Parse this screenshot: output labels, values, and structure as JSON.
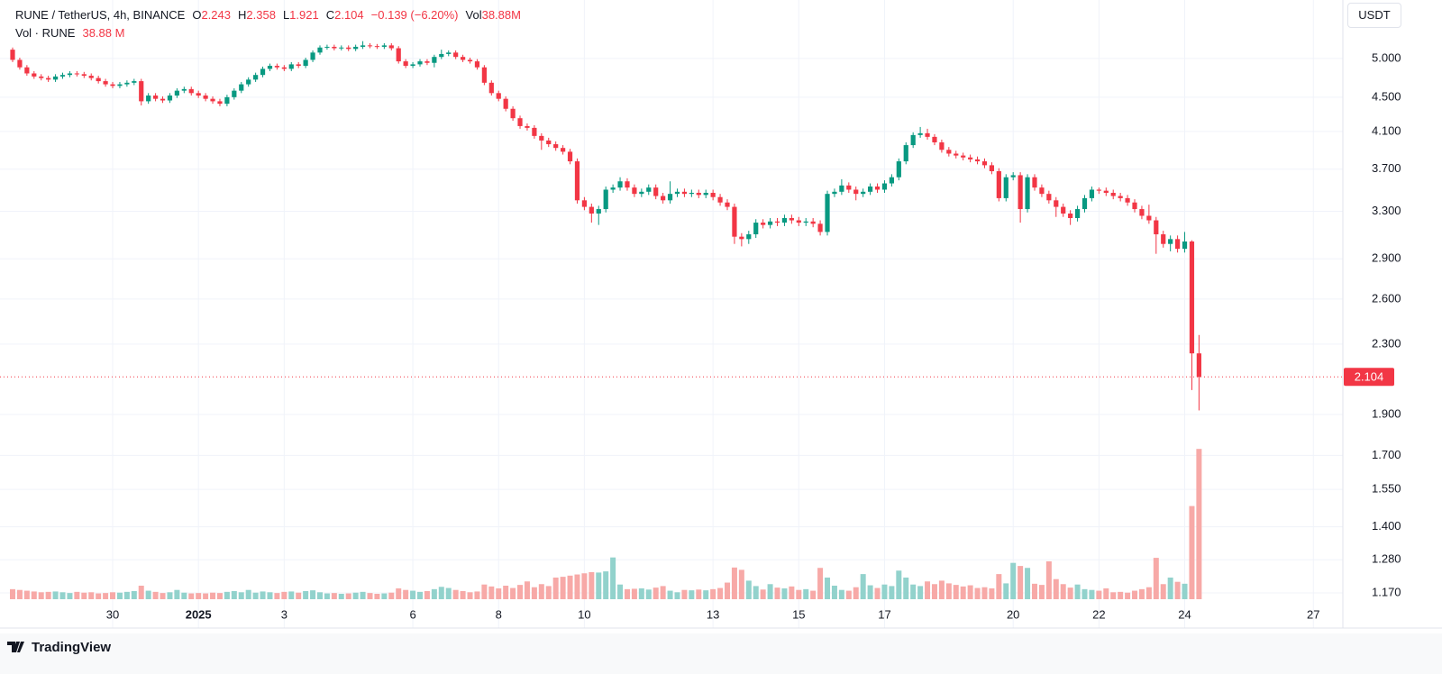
{
  "chart_data": {
    "type": "candlestick",
    "legend": {
      "symbol": "RUNE / TetherUS, 4h, BINANCE",
      "o": "O",
      "h": "H",
      "l": "L",
      "c": "C",
      "change": "−0.139 (−6.20%)",
      "vol": "Vol",
      "vol_value": "38.88M"
    },
    "volume_legend": {
      "name": "Vol · RUNE",
      "value": "38.88 M"
    },
    "currency": "USDT",
    "categories": [
      null,
      null,
      null,
      null,
      null,
      null,
      null,
      null,
      null,
      null,
      null,
      null,
      null,
      null,
      "30",
      null,
      null,
      null,
      null,
      null,
      null,
      null,
      null,
      null,
      null,
      null,
      "2025",
      null,
      null,
      null,
      null,
      null,
      null,
      null,
      null,
      null,
      null,
      null,
      "3",
      null,
      null,
      null,
      null,
      null,
      null,
      null,
      null,
      null,
      null,
      null,
      null,
      null,
      null,
      null,
      null,
      null,
      "6",
      null,
      null,
      null,
      null,
      null,
      null,
      null,
      null,
      null,
      null,
      null,
      "8",
      null,
      null,
      null,
      null,
      null,
      null,
      null,
      null,
      null,
      null,
      null,
      "10",
      null,
      null,
      null,
      null,
      null,
      null,
      null,
      null,
      null,
      null,
      null,
      null,
      null,
      null,
      null,
      null,
      null,
      "13",
      null,
      null,
      null,
      null,
      null,
      null,
      null,
      null,
      null,
      null,
      null,
      "15",
      null,
      null,
      null,
      null,
      null,
      null,
      null,
      null,
      null,
      null,
      null,
      "17",
      null,
      null,
      null,
      null,
      null,
      null,
      null,
      null,
      null,
      null,
      null,
      null,
      null,
      null,
      null,
      null,
      null,
      "20",
      null,
      null,
      null,
      null,
      null,
      null,
      null,
      null,
      null,
      null,
      null,
      "22",
      null,
      null,
      null,
      null,
      null,
      null,
      null,
      null,
      null,
      null,
      null,
      "24",
      null,
      null,
      null,
      null,
      null,
      null,
      null,
      null,
      null,
      null,
      null,
      null,
      null,
      null,
      null,
      null,
      null,
      "27",
      null,
      null,
      null
    ],
    "open": [
      5.12,
      4.98,
      4.88,
      4.8,
      4.76,
      4.74,
      4.72,
      4.76,
      4.78,
      4.8,
      4.79,
      4.77,
      4.74,
      4.7,
      4.66,
      4.64,
      4.66,
      4.68,
      4.7,
      4.45,
      4.52,
      4.48,
      4.46,
      4.52,
      4.58,
      4.6,
      4.55,
      4.52,
      4.48,
      4.45,
      4.42,
      4.5,
      4.58,
      4.66,
      4.72,
      4.78,
      4.86,
      4.9,
      4.88,
      4.86,
      4.92,
      4.9,
      4.98,
      5.08,
      5.15,
      5.16,
      5.14,
      5.15,
      5.13,
      5.16,
      5.18,
      5.17,
      5.16,
      5.18,
      5.14,
      4.96,
      4.9,
      4.92,
      4.96,
      4.94,
      5.02,
      5.06,
      5.08,
      5.02,
      4.98,
      4.96,
      4.88,
      4.68,
      4.55,
      4.48,
      4.36,
      4.25,
      4.16,
      4.14,
      4.05,
      4.0,
      3.96,
      3.92,
      3.88,
      3.78,
      3.4,
      3.34,
      3.28,
      3.32,
      3.5,
      3.52,
      3.58,
      3.52,
      3.46,
      3.48,
      3.52,
      3.44,
      3.4,
      3.46,
      3.48,
      3.46,
      3.47,
      3.45,
      3.47,
      3.43,
      3.38,
      3.34,
      3.08,
      3.06,
      3.1,
      3.2,
      3.18,
      3.21,
      3.2,
      3.24,
      3.22,
      3.2,
      3.21,
      3.19,
      3.12,
      3.46,
      3.48,
      3.54,
      3.5,
      3.46,
      3.48,
      3.53,
      3.5,
      3.56,
      3.62,
      3.78,
      3.95,
      4.06,
      4.08,
      4.04,
      3.98,
      3.9,
      3.86,
      3.84,
      3.82,
      3.8,
      3.78,
      3.74,
      3.68,
      3.42,
      3.62,
      3.64,
      3.32,
      3.62,
      3.52,
      3.46,
      3.4,
      3.34,
      3.28,
      3.24,
      3.32,
      3.42,
      3.5,
      3.49,
      3.47,
      3.44,
      3.42,
      3.38,
      3.32,
      3.26,
      3.22,
      3.1,
      3.02,
      3.06,
      2.98,
      3.04,
      2.243,
      null,
      null,
      null,
      null,
      null,
      null,
      null,
      null,
      null,
      null,
      null,
      null,
      null,
      null,
      null,
      null,
      null,
      null,
      null
    ],
    "high": [
      5.15,
      5.01,
      4.91,
      4.83,
      4.79,
      4.77,
      4.79,
      4.81,
      4.83,
      4.83,
      4.82,
      4.8,
      4.77,
      4.73,
      4.69,
      4.69,
      4.71,
      4.73,
      4.73,
      4.55,
      4.55,
      4.51,
      4.55,
      4.61,
      4.63,
      4.63,
      4.58,
      4.55,
      4.51,
      4.48,
      4.53,
      4.61,
      4.69,
      4.75,
      4.81,
      4.89,
      4.93,
      4.93,
      4.91,
      4.95,
      4.95,
      5.01,
      5.11,
      5.18,
      5.19,
      5.19,
      5.18,
      5.18,
      5.19,
      5.24,
      5.21,
      5.2,
      5.21,
      5.21,
      5.17,
      4.99,
      4.95,
      4.99,
      4.99,
      5.05,
      5.12,
      5.11,
      5.11,
      5.05,
      5.01,
      4.99,
      4.91,
      4.71,
      4.58,
      4.51,
      4.39,
      4.28,
      4.19,
      4.17,
      4.08,
      4.03,
      3.99,
      3.95,
      3.91,
      3.81,
      3.43,
      3.37,
      3.35,
      3.53,
      3.55,
      3.62,
      3.61,
      3.55,
      3.51,
      3.55,
      3.55,
      3.47,
      3.58,
      3.51,
      3.51,
      3.5,
      3.5,
      3.5,
      3.5,
      3.46,
      3.41,
      3.37,
      3.11,
      3.13,
      3.23,
      3.23,
      3.24,
      3.24,
      3.27,
      3.27,
      3.25,
      3.24,
      3.24,
      3.22,
      3.49,
      3.51,
      3.6,
      3.57,
      3.53,
      3.51,
      3.56,
      3.56,
      3.59,
      3.65,
      3.81,
      3.98,
      4.09,
      4.15,
      4.13,
      4.07,
      4.01,
      3.93,
      3.89,
      3.87,
      3.85,
      3.83,
      3.81,
      3.77,
      3.71,
      3.65,
      3.67,
      3.67,
      3.65,
      3.65,
      3.55,
      3.49,
      3.43,
      3.37,
      3.31,
      3.35,
      3.45,
      3.53,
      3.52,
      3.52,
      3.5,
      3.47,
      3.45,
      3.41,
      3.35,
      3.36,
      3.25,
      3.13,
      3.09,
      3.09,
      3.12,
      3.05,
      2.358,
      null,
      null,
      null,
      null,
      null,
      null,
      null,
      null,
      null,
      null,
      null,
      null,
      null,
      null,
      null,
      null,
      null,
      null,
      null
    ],
    "low": [
      4.95,
      4.85,
      4.77,
      4.73,
      4.71,
      4.69,
      4.69,
      4.73,
      4.75,
      4.76,
      4.74,
      4.71,
      4.67,
      4.63,
      4.61,
      4.61,
      4.63,
      4.65,
      4.4,
      4.42,
      4.45,
      4.43,
      4.43,
      4.49,
      4.55,
      4.52,
      4.49,
      4.45,
      4.42,
      4.39,
      4.39,
      4.47,
      4.55,
      4.63,
      4.69,
      4.75,
      4.83,
      4.85,
      4.83,
      4.83,
      4.87,
      4.87,
      4.95,
      5.05,
      5.12,
      5.11,
      5.11,
      5.1,
      5.1,
      5.13,
      5.14,
      5.13,
      5.13,
      5.11,
      4.93,
      4.87,
      4.87,
      4.89,
      4.91,
      4.88,
      4.99,
      5.03,
      4.99,
      4.95,
      4.93,
      4.85,
      4.65,
      4.52,
      4.45,
      4.33,
      4.22,
      4.13,
      4.11,
      4.02,
      3.9,
      3.93,
      3.89,
      3.85,
      3.75,
      3.37,
      3.31,
      3.2,
      3.18,
      3.29,
      3.47,
      3.49,
      3.49,
      3.43,
      3.43,
      3.45,
      3.41,
      3.37,
      3.37,
      3.43,
      3.43,
      3.43,
      3.42,
      3.42,
      3.4,
      3.35,
      3.31,
      3.02,
      3.0,
      3.02,
      3.07,
      3.15,
      3.15,
      3.17,
      3.17,
      3.19,
      3.17,
      3.17,
      3.16,
      3.09,
      3.09,
      3.43,
      3.45,
      3.47,
      3.4,
      3.43,
      3.45,
      3.47,
      3.47,
      3.53,
      3.59,
      3.75,
      3.92,
      4.03,
      4.01,
      3.95,
      3.87,
      3.83,
      3.81,
      3.79,
      3.77,
      3.75,
      3.71,
      3.65,
      3.39,
      3.39,
      3.59,
      3.2,
      3.29,
      3.49,
      3.43,
      3.37,
      3.25,
      3.25,
      3.18,
      3.21,
      3.29,
      3.39,
      3.46,
      3.44,
      3.41,
      3.39,
      3.35,
      3.29,
      3.23,
      3.19,
      2.94,
      2.99,
      2.96,
      2.95,
      2.95,
      2.03,
      1.921,
      null,
      null,
      null,
      null,
      null,
      null,
      null,
      null,
      null,
      null,
      null,
      null,
      null,
      null,
      null,
      null,
      null,
      null,
      null
    ],
    "close": [
      4.98,
      4.88,
      4.8,
      4.76,
      4.74,
      4.72,
      4.76,
      4.78,
      4.8,
      4.79,
      4.77,
      4.74,
      4.7,
      4.66,
      4.64,
      4.66,
      4.68,
      4.7,
      4.45,
      4.52,
      4.48,
      4.46,
      4.52,
      4.58,
      4.6,
      4.55,
      4.52,
      4.48,
      4.45,
      4.42,
      4.5,
      4.58,
      4.66,
      4.72,
      4.78,
      4.86,
      4.9,
      4.88,
      4.86,
      4.92,
      4.9,
      4.98,
      5.08,
      5.15,
      5.16,
      5.14,
      5.15,
      5.13,
      5.16,
      5.18,
      5.17,
      5.16,
      5.18,
      5.14,
      4.96,
      4.9,
      4.92,
      4.96,
      4.94,
      5.02,
      5.06,
      5.08,
      5.02,
      4.98,
      4.96,
      4.88,
      4.68,
      4.55,
      4.48,
      4.36,
      4.25,
      4.16,
      4.14,
      4.05,
      4.0,
      3.96,
      3.92,
      3.88,
      3.78,
      3.4,
      3.34,
      3.28,
      3.32,
      3.5,
      3.52,
      3.58,
      3.52,
      3.46,
      3.48,
      3.52,
      3.44,
      3.4,
      3.46,
      3.48,
      3.46,
      3.47,
      3.45,
      3.47,
      3.43,
      3.38,
      3.34,
      3.08,
      3.06,
      3.1,
      3.2,
      3.18,
      3.21,
      3.2,
      3.24,
      3.22,
      3.2,
      3.21,
      3.19,
      3.12,
      3.46,
      3.48,
      3.54,
      3.5,
      3.46,
      3.48,
      3.53,
      3.5,
      3.56,
      3.62,
      3.78,
      3.95,
      4.06,
      4.08,
      4.04,
      3.98,
      3.9,
      3.86,
      3.84,
      3.82,
      3.8,
      3.78,
      3.74,
      3.68,
      3.42,
      3.62,
      3.64,
      3.32,
      3.62,
      3.52,
      3.46,
      3.4,
      3.34,
      3.28,
      3.24,
      3.32,
      3.42,
      3.5,
      3.49,
      3.47,
      3.44,
      3.42,
      3.38,
      3.32,
      3.26,
      3.22,
      3.1,
      3.02,
      3.06,
      2.98,
      3.04,
      2.243,
      2.104,
      null,
      null,
      null,
      null,
      null,
      null,
      null,
      null,
      null,
      null,
      null,
      null,
      null,
      null,
      null,
      null,
      null,
      null,
      null
    ],
    "volume": [
      2.6,
      2.4,
      2.2,
      2.0,
      1.8,
      1.9,
      2.0,
      1.8,
      1.6,
      1.9,
      1.7,
      1.8,
      1.5,
      1.6,
      1.8,
      1.7,
      1.9,
      2.1,
      3.5,
      2.2,
      1.9,
      1.6,
      1.8,
      2.4,
      1.7,
      1.5,
      1.6,
      1.5,
      1.7,
      1.6,
      1.9,
      2.1,
      1.8,
      2.4,
      1.7,
      2.0,
      1.8,
      1.6,
      1.9,
      2.0,
      1.7,
      2.1,
      2.3,
      1.8,
      1.5,
      1.6,
      1.4,
      1.5,
      1.7,
      1.9,
      1.6,
      1.4,
      1.5,
      1.7,
      2.8,
      2.4,
      2.2,
      1.9,
      2.1,
      2.6,
      3.2,
      2.9,
      2.4,
      2.1,
      1.8,
      2.0,
      3.8,
      3.3,
      2.8,
      3.5,
      2.9,
      3.7,
      4.6,
      3.1,
      3.9,
      3.4,
      5.6,
      5.8,
      6.1,
      6.4,
      6.7,
      7.0,
      6.9,
      7.2,
      10.8,
      3.8,
      2.6,
      2.7,
      2.8,
      2.5,
      3.0,
      3.4,
      2.2,
      1.8,
      2.4,
      2.3,
      2.5,
      2.3,
      2.6,
      2.9,
      4.3,
      8.2,
      7.6,
      4.8,
      3.4,
      2.5,
      3.9,
      3.0,
      2.8,
      3.3,
      2.4,
      2.6,
      2.2,
      8.1,
      5.6,
      3.5,
      2.4,
      2.2,
      3.1,
      6.5,
      3.6,
      2.9,
      3.8,
      3.4,
      7.4,
      5.6,
      3.8,
      3.4,
      4.6,
      3.9,
      4.8,
      4.1,
      3.7,
      3.3,
      3.6,
      2.9,
      3.1,
      2.8,
      6.5,
      4.1,
      9.4,
      8.6,
      8.1,
      4.0,
      3.7,
      9.8,
      5.2,
      3.9,
      3.0,
      3.8,
      2.6,
      2.4,
      2.2,
      2.8,
      1.8,
      1.9,
      1.7,
      2.2,
      2.6,
      3.1,
      10.7,
      3.9,
      5.6,
      4.5,
      4.0,
      24.1,
      38.88,
      null,
      null,
      null,
      null,
      null,
      null,
      null,
      null,
      null,
      null,
      null,
      null,
      null,
      null,
      null,
      null,
      null,
      null,
      null
    ],
    "up_color": "#089981",
    "down_color": "#f23645",
    "volume_up_color": "#92d2cc",
    "volume_down_color": "#f7a9a7",
    "log_y": true,
    "ylim": [
      1.15,
      5.86
    ],
    "yticks": [
      {
        "value": 5,
        "label": "5.000"
      },
      {
        "value": 4.5,
        "label": "4.500"
      },
      {
        "value": 4.1,
        "label": "4.100"
      },
      {
        "value": 3.7,
        "label": "3.700"
      },
      {
        "value": 3.3,
        "label": "3.300"
      },
      {
        "value": 2.9,
        "label": "2.900"
      },
      {
        "value": 2.6,
        "label": "2.600"
      },
      {
        "value": 2.3,
        "label": "2.300"
      },
      {
        "value": 1.9,
        "label": "1.900"
      },
      {
        "value": 1.7,
        "label": "1.700"
      },
      {
        "value": 1.55,
        "label": "1.550"
      },
      {
        "value": 1.4,
        "label": "1.400"
      },
      {
        "value": 1.28,
        "label": "1.280"
      },
      {
        "value": 1.17,
        "label": "1.170"
      }
    ],
    "y2lim": [
      0,
      155
    ],
    "grid": true
  },
  "footer": {
    "brand": "TradingView"
  }
}
